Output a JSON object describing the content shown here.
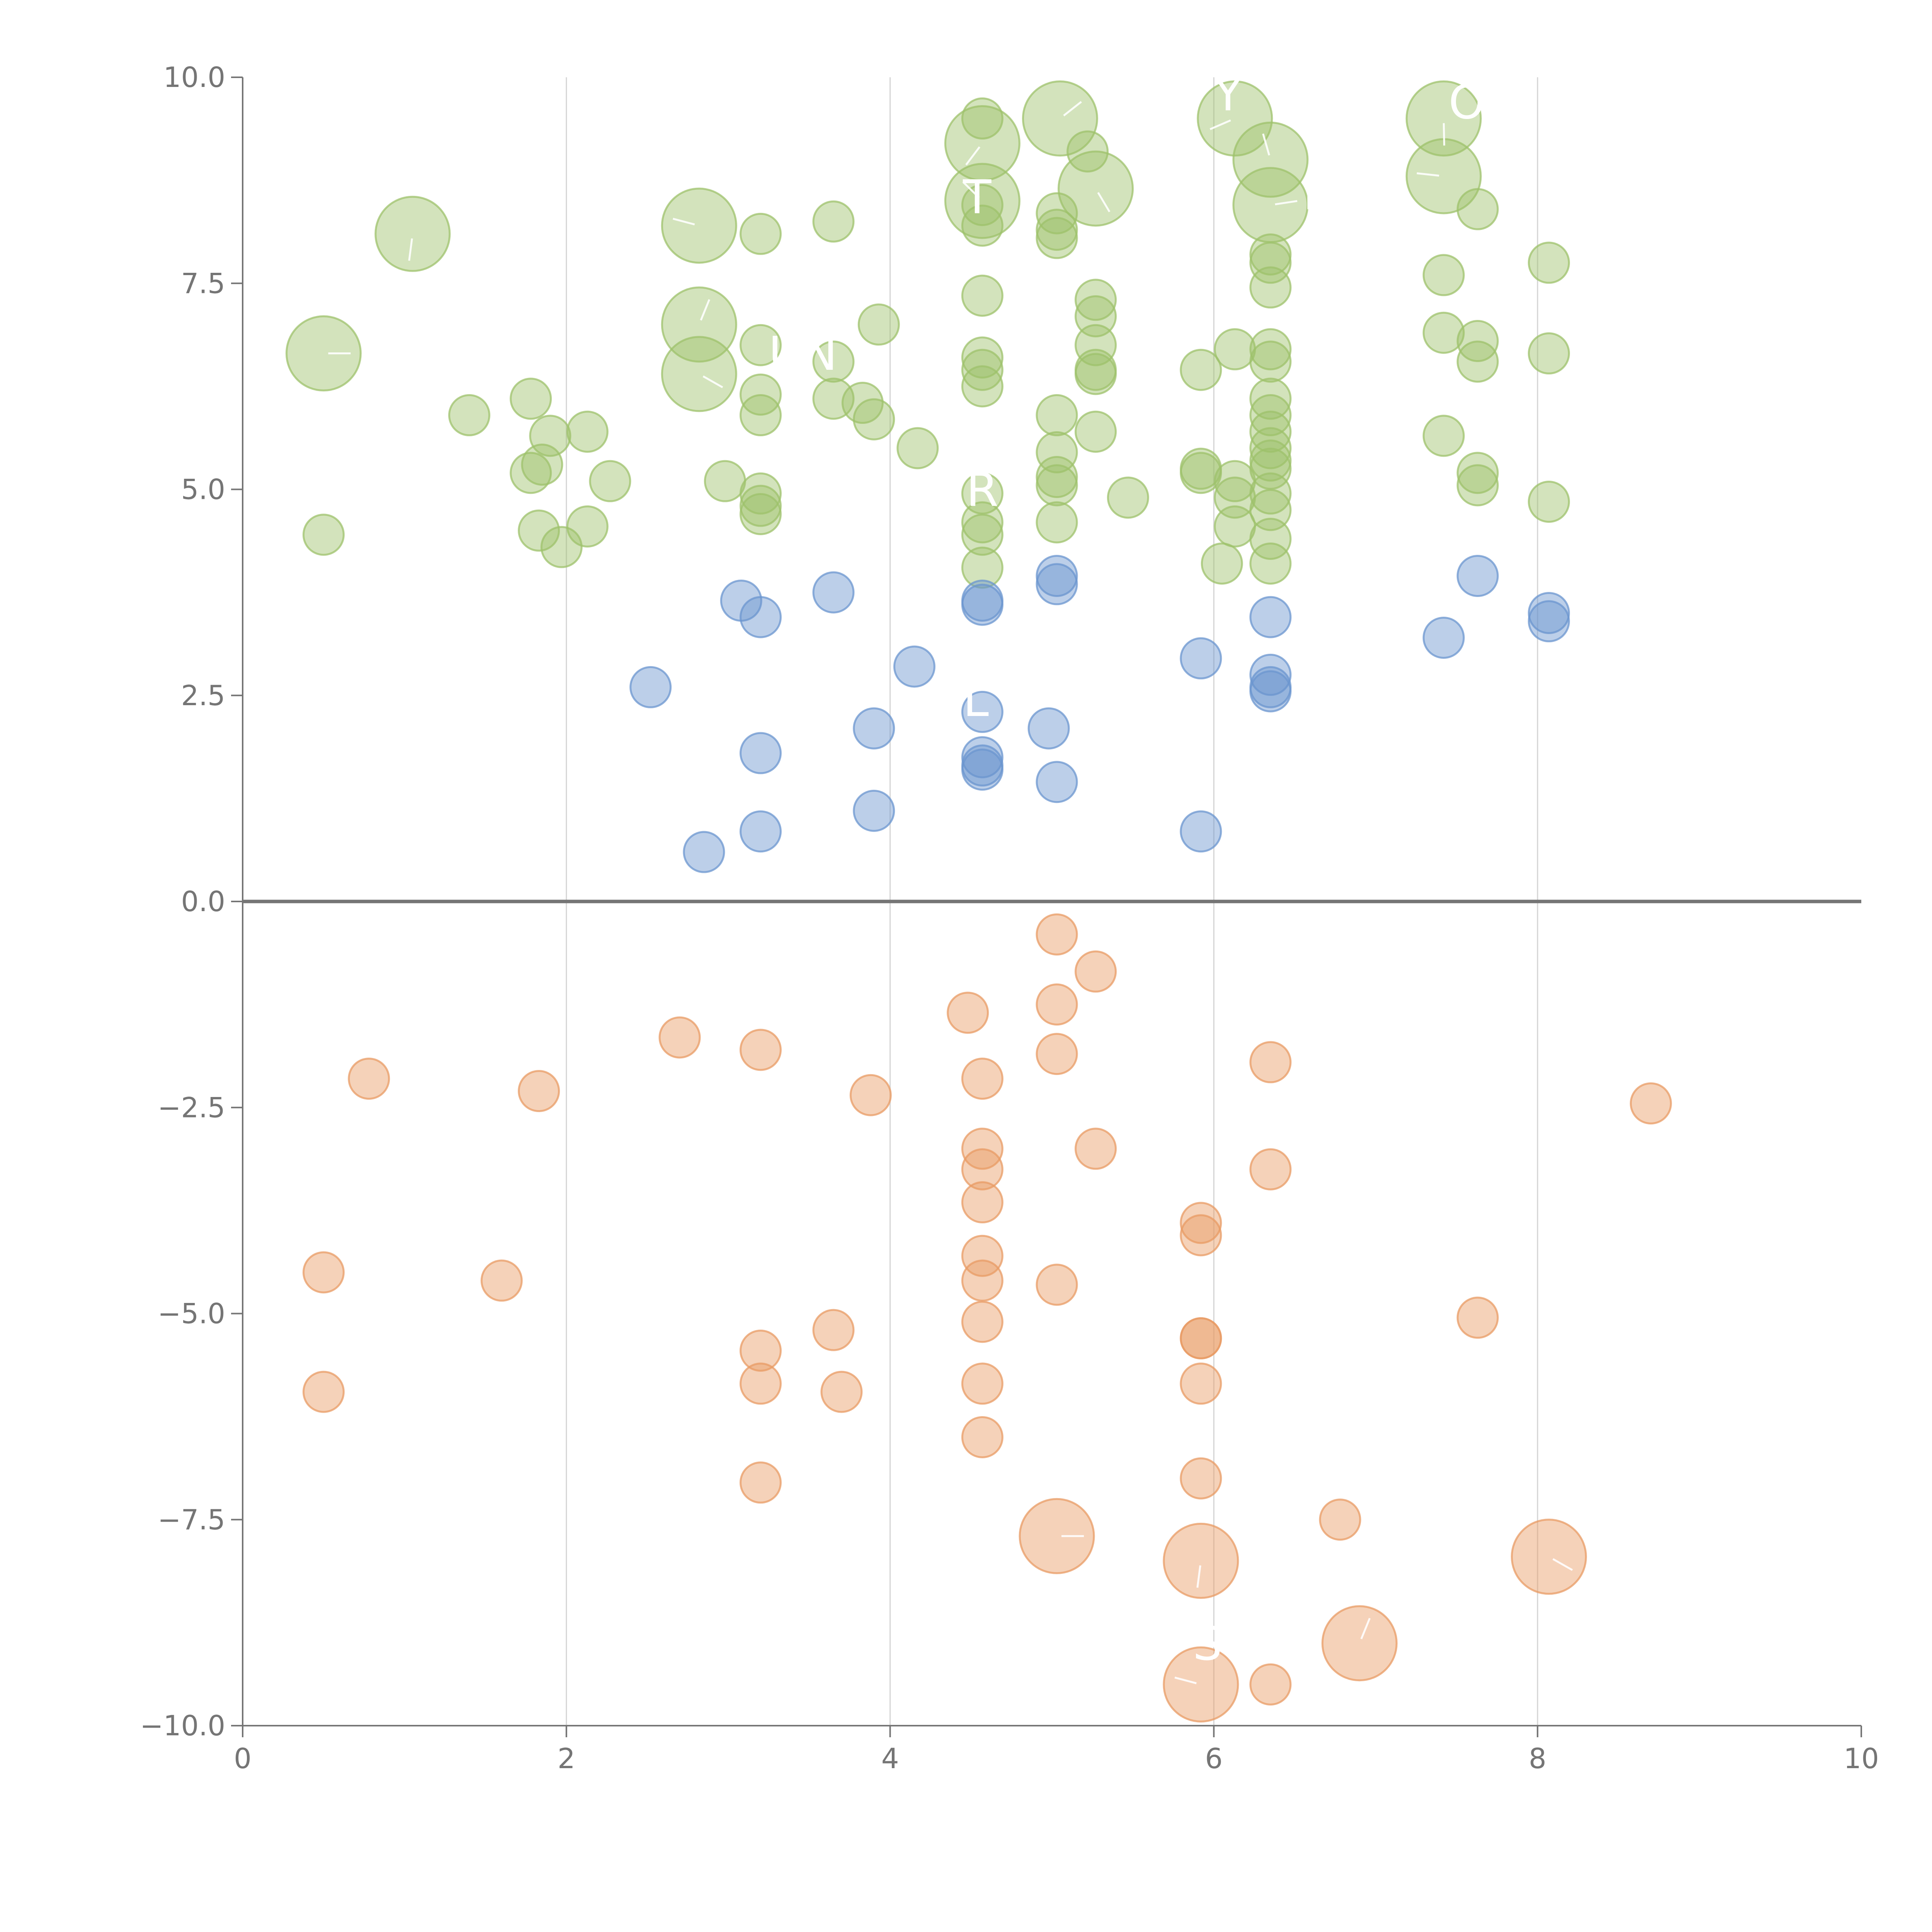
{
  "chart_data": {
    "type": "scatter",
    "variant": "bubble",
    "title": "",
    "xlabel": "",
    "ylabel": "",
    "xlim": [
      0,
      10
    ],
    "ylim": [
      -10,
      10
    ],
    "x_ticks": [
      0,
      2,
      4,
      6,
      8,
      10
    ],
    "x_tick_labels": [
      "0",
      "2",
      "4",
      "6",
      "8",
      "10"
    ],
    "y_ticks": [
      10,
      7.5,
      5,
      2.5,
      0,
      -2.5,
      -5,
      -7.5,
      -10
    ],
    "y_tick_labels": [
      "10.0",
      "7.5",
      "5.0",
      "2.5",
      "0.0",
      "−2.5",
      "−5.0",
      "−7.5",
      "−10.0"
    ],
    "x_grid": true,
    "y_grid": false,
    "zero_line": true,
    "legend": "none",
    "colors": {
      "green": "#9dc16b",
      "blue": "#6b95cf",
      "orange": "#e89b64",
      "axis": "#757575",
      "grid": "#d4d4d4",
      "label": "#ffffff"
    },
    "series": [
      {
        "name": "high",
        "color": "#9dc16b",
        "points": [
          {
            "x": 0.5,
            "y": 6.65,
            "size": 3
          },
          {
            "x": 0.5,
            "y": 4.45,
            "size": 1
          },
          {
            "x": 1.05,
            "y": 8.1,
            "size": 3
          },
          {
            "x": 1.4,
            "y": 5.9,
            "size": 1
          },
          {
            "x": 1.78,
            "y": 6.1,
            "size": 1
          },
          {
            "x": 1.78,
            "y": 5.2,
            "size": 1
          },
          {
            "x": 1.83,
            "y": 4.5,
            "size": 1
          },
          {
            "x": 1.85,
            "y": 5.3,
            "size": 1
          },
          {
            "x": 1.9,
            "y": 5.65,
            "size": 1
          },
          {
            "x": 1.97,
            "y": 4.3,
            "size": 1
          },
          {
            "x": 2.13,
            "y": 5.7,
            "size": 1
          },
          {
            "x": 2.13,
            "y": 4.55,
            "size": 1
          },
          {
            "x": 2.27,
            "y": 5.1,
            "size": 1
          },
          {
            "x": 2.82,
            "y": 8.2,
            "size": 3
          },
          {
            "x": 2.82,
            "y": 7.0,
            "size": 3
          },
          {
            "x": 2.82,
            "y": 6.4,
            "size": 3
          },
          {
            "x": 2.98,
            "y": 5.1,
            "size": 1
          },
          {
            "x": 3.2,
            "y": 8.1,
            "size": 1
          },
          {
            "x": 3.2,
            "y": 6.75,
            "size": 1
          },
          {
            "x": 3.2,
            "y": 6.15,
            "size": 1
          },
          {
            "x": 3.2,
            "y": 5.9,
            "size": 1
          },
          {
            "x": 3.2,
            "y": 4.95,
            "size": 1
          },
          {
            "x": 3.2,
            "y": 4.8,
            "size": 1
          },
          {
            "x": 3.2,
            "y": 4.7,
            "size": 1
          },
          {
            "x": 3.65,
            "y": 8.25,
            "size": 1
          },
          {
            "x": 3.65,
            "y": 6.55,
            "size": 1
          },
          {
            "x": 3.65,
            "y": 6.1,
            "size": 1
          },
          {
            "x": 3.83,
            "y": 6.05,
            "size": 1
          },
          {
            "x": 3.9,
            "y": 5.85,
            "size": 1
          },
          {
            "x": 3.93,
            "y": 7.0,
            "size": 1
          },
          {
            "x": 4.17,
            "y": 5.5,
            "size": 1
          },
          {
            "x": 4.57,
            "y": 9.2,
            "size": 3
          },
          {
            "x": 4.57,
            "y": 8.5,
            "size": 3
          },
          {
            "x": 4.57,
            "y": 9.5,
            "size": 1
          },
          {
            "x": 4.57,
            "y": 8.45,
            "size": 1
          },
          {
            "x": 4.57,
            "y": 8.2,
            "size": 1
          },
          {
            "x": 4.57,
            "y": 7.35,
            "size": 1
          },
          {
            "x": 4.57,
            "y": 6.6,
            "size": 1
          },
          {
            "x": 4.57,
            "y": 6.45,
            "size": 1
          },
          {
            "x": 4.57,
            "y": 6.25,
            "size": 1
          },
          {
            "x": 4.57,
            "y": 4.95,
            "size": 1
          },
          {
            "x": 4.57,
            "y": 4.6,
            "size": 1
          },
          {
            "x": 4.57,
            "y": 4.45,
            "size": 1
          },
          {
            "x": 4.57,
            "y": 4.05,
            "size": 1
          },
          {
            "x": 5.05,
            "y": 9.5,
            "size": 3
          },
          {
            "x": 5.03,
            "y": 8.35,
            "size": 1
          },
          {
            "x": 5.03,
            "y": 8.15,
            "size": 1
          },
          {
            "x": 5.03,
            "y": 8.05,
            "size": 1
          },
          {
            "x": 5.03,
            "y": 5.9,
            "size": 1
          },
          {
            "x": 5.03,
            "y": 5.45,
            "size": 1
          },
          {
            "x": 5.03,
            "y": 5.15,
            "size": 1
          },
          {
            "x": 5.03,
            "y": 5.05,
            "size": 1
          },
          {
            "x": 5.03,
            "y": 4.6,
            "size": 1
          },
          {
            "x": 5.22,
            "y": 9.1,
            "size": 1
          },
          {
            "x": 5.27,
            "y": 8.65,
            "size": 3
          },
          {
            "x": 5.27,
            "y": 7.3,
            "size": 1
          },
          {
            "x": 5.27,
            "y": 7.1,
            "size": 1
          },
          {
            "x": 5.27,
            "y": 6.75,
            "size": 1
          },
          {
            "x": 5.27,
            "y": 6.45,
            "size": 1
          },
          {
            "x": 5.27,
            "y": 6.4,
            "size": 1
          },
          {
            "x": 5.27,
            "y": 5.7,
            "size": 1
          },
          {
            "x": 5.47,
            "y": 4.9,
            "size": 1
          },
          {
            "x": 5.92,
            "y": 6.45,
            "size": 1
          },
          {
            "x": 5.92,
            "y": 5.25,
            "size": 1
          },
          {
            "x": 5.92,
            "y": 5.2,
            "size": 1
          },
          {
            "x": 6.05,
            "y": 4.1,
            "size": 1
          },
          {
            "x": 6.13,
            "y": 6.7,
            "size": 1
          },
          {
            "x": 6.13,
            "y": 5.1,
            "size": 1
          },
          {
            "x": 6.13,
            "y": 4.9,
            "size": 1
          },
          {
            "x": 6.13,
            "y": 4.55,
            "size": 1
          },
          {
            "x": 6.13,
            "y": 9.5,
            "size": 3
          },
          {
            "x": 6.35,
            "y": 9.0,
            "size": 3
          },
          {
            "x": 6.35,
            "y": 8.45,
            "size": 3
          },
          {
            "x": 6.35,
            "y": 7.85,
            "size": 1
          },
          {
            "x": 6.35,
            "y": 7.75,
            "size": 1
          },
          {
            "x": 6.35,
            "y": 7.45,
            "size": 1
          },
          {
            "x": 6.35,
            "y": 6.7,
            "size": 1
          },
          {
            "x": 6.35,
            "y": 6.55,
            "size": 1
          },
          {
            "x": 6.35,
            "y": 6.1,
            "size": 1
          },
          {
            "x": 6.35,
            "y": 5.9,
            "size": 1
          },
          {
            "x": 6.35,
            "y": 5.7,
            "size": 1
          },
          {
            "x": 6.35,
            "y": 5.5,
            "size": 1
          },
          {
            "x": 6.35,
            "y": 5.35,
            "size": 1
          },
          {
            "x": 6.35,
            "y": 5.25,
            "size": 1
          },
          {
            "x": 6.35,
            "y": 4.95,
            "size": 1
          },
          {
            "x": 6.35,
            "y": 4.75,
            "size": 1
          },
          {
            "x": 6.35,
            "y": 4.4,
            "size": 1
          },
          {
            "x": 6.35,
            "y": 4.1,
            "size": 1
          },
          {
            "x": 7.42,
            "y": 9.5,
            "size": 3
          },
          {
            "x": 7.42,
            "y": 8.8,
            "size": 3
          },
          {
            "x": 7.42,
            "y": 7.6,
            "size": 1
          },
          {
            "x": 7.42,
            "y": 6.9,
            "size": 1
          },
          {
            "x": 7.42,
            "y": 5.65,
            "size": 1
          },
          {
            "x": 7.63,
            "y": 8.4,
            "size": 1
          },
          {
            "x": 7.63,
            "y": 6.8,
            "size": 1
          },
          {
            "x": 7.63,
            "y": 6.55,
            "size": 1
          },
          {
            "x": 7.63,
            "y": 5.2,
            "size": 1
          },
          {
            "x": 7.63,
            "y": 5.05,
            "size": 1
          },
          {
            "x": 8.07,
            "y": 7.75,
            "size": 1
          },
          {
            "x": 8.07,
            "y": 6.65,
            "size": 1
          },
          {
            "x": 8.07,
            "y": 4.85,
            "size": 1
          }
        ]
      },
      {
        "name": "mid",
        "color": "#6b95cf",
        "points": [
          {
            "x": 2.52,
            "y": 2.6,
            "size": 1
          },
          {
            "x": 2.85,
            "y": 0.6,
            "size": 1
          },
          {
            "x": 3.08,
            "y": 3.65,
            "size": 1
          },
          {
            "x": 3.2,
            "y": 3.45,
            "size": 1
          },
          {
            "x": 3.2,
            "y": 1.8,
            "size": 1
          },
          {
            "x": 3.2,
            "y": 0.85,
            "size": 1
          },
          {
            "x": 3.65,
            "y": 3.75,
            "size": 1
          },
          {
            "x": 3.9,
            "y": 2.1,
            "size": 1
          },
          {
            "x": 3.9,
            "y": 1.1,
            "size": 1
          },
          {
            "x": 4.15,
            "y": 2.85,
            "size": 1
          },
          {
            "x": 4.57,
            "y": 3.65,
            "size": 1
          },
          {
            "x": 4.57,
            "y": 3.6,
            "size": 1
          },
          {
            "x": 4.57,
            "y": 2.3,
            "size": 1
          },
          {
            "x": 4.57,
            "y": 1.75,
            "size": 1
          },
          {
            "x": 4.57,
            "y": 1.65,
            "size": 1
          },
          {
            "x": 4.57,
            "y": 1.6,
            "size": 1
          },
          {
            "x": 4.98,
            "y": 2.1,
            "size": 1
          },
          {
            "x": 5.03,
            "y": 3.95,
            "size": 1
          },
          {
            "x": 5.03,
            "y": 3.85,
            "size": 1
          },
          {
            "x": 5.03,
            "y": 1.45,
            "size": 1
          },
          {
            "x": 5.92,
            "y": 2.95,
            "size": 1
          },
          {
            "x": 5.92,
            "y": 0.85,
            "size": 1
          },
          {
            "x": 6.35,
            "y": 3.45,
            "size": 1
          },
          {
            "x": 6.35,
            "y": 2.75,
            "size": 1
          },
          {
            "x": 6.35,
            "y": 2.6,
            "size": 1
          },
          {
            "x": 6.35,
            "y": 2.55,
            "size": 1
          },
          {
            "x": 7.42,
            "y": 3.2,
            "size": 1
          },
          {
            "x": 7.63,
            "y": 3.95,
            "size": 1
          },
          {
            "x": 8.07,
            "y": 3.5,
            "size": 1
          },
          {
            "x": 8.07,
            "y": 3.4,
            "size": 1
          }
        ]
      },
      {
        "name": "low",
        "color": "#e89b64",
        "points": [
          {
            "x": 0.5,
            "y": -4.5,
            "size": 1
          },
          {
            "x": 0.5,
            "y": -5.95,
            "size": 1
          },
          {
            "x": 0.78,
            "y": -2.15,
            "size": 1
          },
          {
            "x": 1.6,
            "y": -4.6,
            "size": 1
          },
          {
            "x": 1.83,
            "y": -2.3,
            "size": 1
          },
          {
            "x": 2.7,
            "y": -1.65,
            "size": 1
          },
          {
            "x": 3.2,
            "y": -1.8,
            "size": 1
          },
          {
            "x": 3.2,
            "y": -5.45,
            "size": 1
          },
          {
            "x": 3.2,
            "y": -5.85,
            "size": 1
          },
          {
            "x": 3.2,
            "y": -7.05,
            "size": 1
          },
          {
            "x": 3.65,
            "y": -5.2,
            "size": 1
          },
          {
            "x": 3.7,
            "y": -5.95,
            "size": 1
          },
          {
            "x": 3.88,
            "y": -2.35,
            "size": 1
          },
          {
            "x": 4.48,
            "y": -1.35,
            "size": 1
          },
          {
            "x": 4.57,
            "y": -2.15,
            "size": 1
          },
          {
            "x": 4.57,
            "y": -3.0,
            "size": 1
          },
          {
            "x": 4.57,
            "y": -3.25,
            "size": 1
          },
          {
            "x": 4.57,
            "y": -3.65,
            "size": 1
          },
          {
            "x": 4.57,
            "y": -4.3,
            "size": 1
          },
          {
            "x": 4.57,
            "y": -4.6,
            "size": 1
          },
          {
            "x": 4.57,
            "y": -5.1,
            "size": 1
          },
          {
            "x": 4.57,
            "y": -5.85,
            "size": 1
          },
          {
            "x": 4.57,
            "y": -6.5,
            "size": 1
          },
          {
            "x": 5.03,
            "y": -0.4,
            "size": 1
          },
          {
            "x": 5.03,
            "y": -1.25,
            "size": 1
          },
          {
            "x": 5.03,
            "y": -1.85,
            "size": 1
          },
          {
            "x": 5.03,
            "y": -4.65,
            "size": 1
          },
          {
            "x": 5.03,
            "y": -7.7,
            "size": 3
          },
          {
            "x": 5.27,
            "y": -0.85,
            "size": 1
          },
          {
            "x": 5.27,
            "y": -3.0,
            "size": 1
          },
          {
            "x": 5.92,
            "y": -3.9,
            "size": 1
          },
          {
            "x": 5.92,
            "y": -4.05,
            "size": 1
          },
          {
            "x": 5.92,
            "y": -5.3,
            "size": 1
          },
          {
            "x": 5.92,
            "y": -5.3,
            "size": 1
          },
          {
            "x": 5.92,
            "y": -5.85,
            "size": 1
          },
          {
            "x": 5.92,
            "y": -7.0,
            "size": 1
          },
          {
            "x": 5.92,
            "y": -8.0,
            "size": 3
          },
          {
            "x": 5.92,
            "y": -9.5,
            "size": 3
          },
          {
            "x": 6.35,
            "y": -1.95,
            "size": 1
          },
          {
            "x": 6.35,
            "y": -3.25,
            "size": 1
          },
          {
            "x": 6.35,
            "y": -9.5,
            "size": 1
          },
          {
            "x": 6.78,
            "y": -7.5,
            "size": 1
          },
          {
            "x": 6.9,
            "y": -9.0,
            "size": 3
          },
          {
            "x": 7.63,
            "y": -5.05,
            "size": 1
          },
          {
            "x": 8.07,
            "y": -7.95,
            "size": 3
          },
          {
            "x": 8.7,
            "y": -2.45,
            "size": 1
          }
        ]
      }
    ],
    "annotations": [
      {
        "text": "Y",
        "x": 6.0,
        "y": 9.6
      },
      {
        "text": "OV",
        "x": 7.45,
        "y": 9.5
      },
      {
        "text": "T",
        "x": 4.45,
        "y": 8.35
      },
      {
        "text": "I",
        "x": 6.55,
        "y": 8.4
      },
      {
        "text": "UN",
        "x": 3.25,
        "y": 6.45
      },
      {
        "text": "R",
        "x": 4.47,
        "y": 4.8
      },
      {
        "text": "L",
        "x": 4.45,
        "y": 2.25
      },
      {
        "text": "S",
        "x": 5.87,
        "y": -9.2
      }
    ]
  }
}
